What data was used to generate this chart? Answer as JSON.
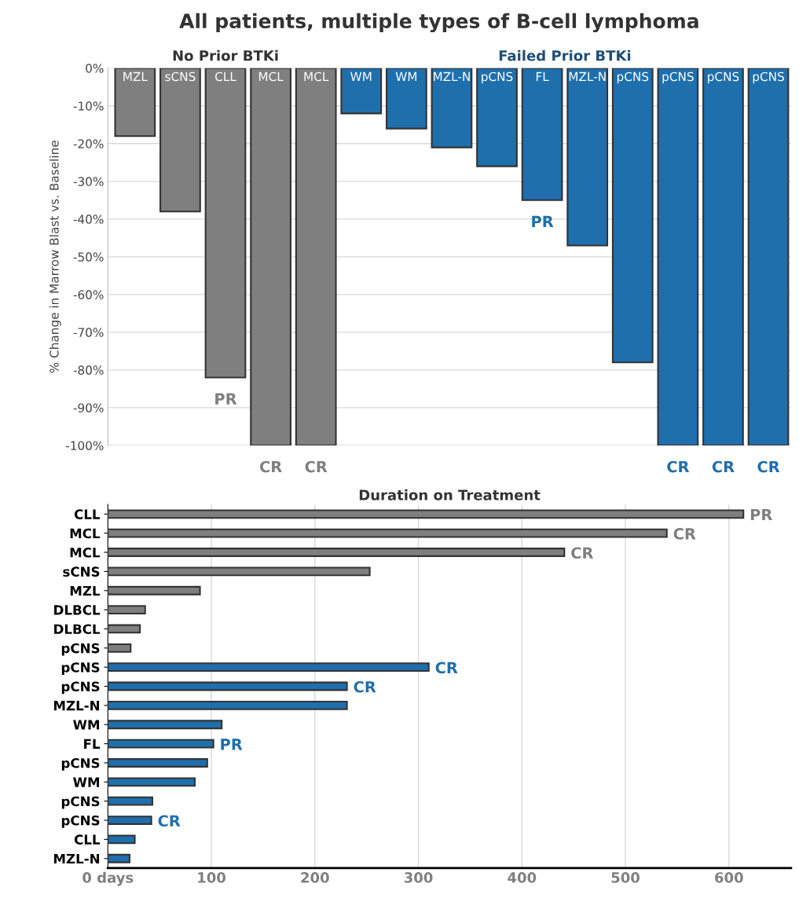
{
  "chart_data": [
    {
      "type": "bar",
      "title": "All patients, multiple types of B-cell lymphoma",
      "ylabel": "% Change in Marrow Blast vs. Baseline",
      "categories": [
        "MZL",
        "sCNS",
        "CLL",
        "MCL",
        "MCL",
        "WM",
        "WM",
        "MZL-N",
        "pCNS",
        "FL",
        "MZL-N",
        "pCNS",
        "pCNS",
        "pCNS",
        "pCNS"
      ],
      "values": [
        -18,
        -38,
        -82,
        -100,
        -100,
        -12,
        -16,
        -21,
        -26,
        -35,
        -47,
        -78,
        -100,
        -100,
        -100
      ],
      "colors": [
        "#7f7f7f",
        "#7f7f7f",
        "#7f7f7f",
        "#7f7f7f",
        "#7f7f7f",
        "#1f6fad",
        "#1f6fad",
        "#1f6fad",
        "#1f6fad",
        "#1f6fad",
        "#1f6fad",
        "#1f6fad",
        "#1f6fad",
        "#1f6fad",
        "#1f6fad"
      ],
      "value_labels": [
        null,
        null,
        "PR",
        "CR",
        "CR",
        null,
        null,
        null,
        null,
        "PR",
        null,
        null,
        "CR",
        "CR",
        "CR"
      ],
      "annotations": [
        "No Prior BTKi",
        "Failed Prior BTKi"
      ],
      "ylim": [
        -100,
        0
      ],
      "yticks": [
        {
          "value": -100,
          "label": "-100%"
        },
        {
          "value": -90,
          "label": "-90%"
        },
        {
          "value": -80,
          "label": "-80%"
        },
        {
          "value": -70,
          "label": "-70%"
        },
        {
          "value": -60,
          "label": "-60%"
        },
        {
          "value": -50,
          "label": "-50%"
        },
        {
          "value": -40,
          "label": "-40%"
        },
        {
          "value": -30,
          "label": "-30%"
        },
        {
          "value": -20,
          "label": "-20%"
        },
        {
          "value": -10,
          "label": "-10%"
        },
        {
          "value": 0,
          "label": "0%"
        }
      ],
      "grid": "y"
    },
    {
      "type": "bar",
      "orientation": "horizontal",
      "title": "Duration on Treatment",
      "categories": [
        "CLL",
        "MCL",
        "MCL",
        "sCNS",
        "MZL",
        "DLBCL",
        "DLBCL",
        "pCNS",
        "pCNS",
        "pCNS",
        "MZL-N",
        "WM",
        "FL",
        "pCNS",
        "WM",
        "pCNS",
        "pCNS",
        "CLL",
        "MZL-N"
      ],
      "values": [
        614,
        540,
        441,
        253,
        89,
        36,
        31,
        22,
        310,
        231,
        231,
        110,
        102,
        96,
        84,
        43,
        42,
        26,
        21
      ],
      "colors": [
        "#7f7f7f",
        "#7f7f7f",
        "#7f7f7f",
        "#7f7f7f",
        "#7f7f7f",
        "#7f7f7f",
        "#7f7f7f",
        "#7f7f7f",
        "#1f6fad",
        "#1f6fad",
        "#1f6fad",
        "#1f6fad",
        "#1f6fad",
        "#1f6fad",
        "#1f6fad",
        "#1f6fad",
        "#1f6fad",
        "#1f6fad",
        "#1f6fad"
      ],
      "value_labels": [
        "PR",
        "CR",
        "CR",
        null,
        null,
        null,
        null,
        null,
        "CR",
        "CR",
        null,
        null,
        "PR",
        null,
        null,
        null,
        "CR",
        null,
        null
      ],
      "xlim": [
        0,
        660
      ],
      "xticks": [
        {
          "value": 0,
          "label": "0 days"
        },
        100,
        200,
        300,
        400,
        500,
        600
      ],
      "grid": "x"
    }
  ]
}
